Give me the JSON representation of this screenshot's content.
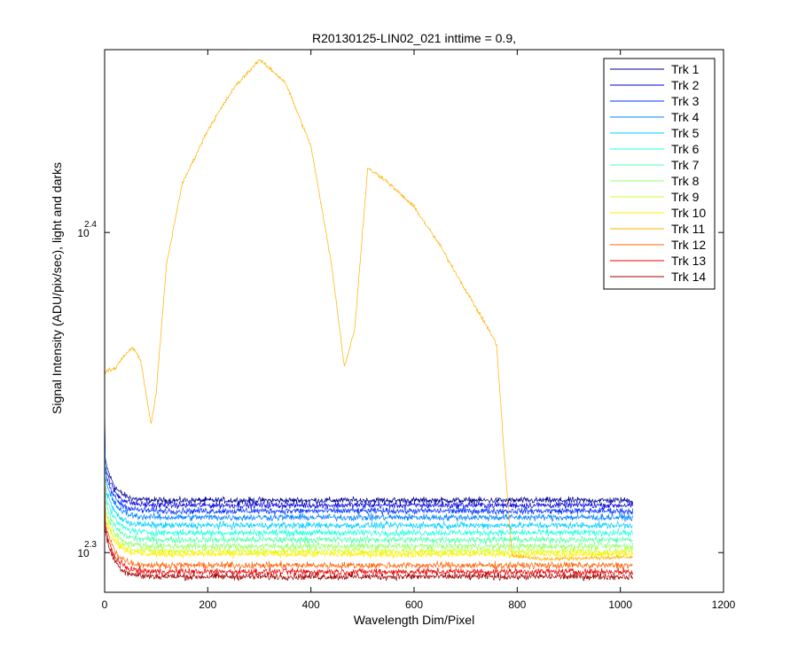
{
  "chart_data": {
    "type": "line",
    "title": "R20130125-LIN02_021 inttime = 0.9,",
    "xlabel": "Wavelength Dim/Pixel",
    "ylabel": "Signal Intensity (ADU/pix/sec), light and darks",
    "xlim": [
      0,
      1200
    ],
    "ylim_log10": [
      2.2876,
      2.4571
    ],
    "y_scale": "log",
    "x_ticks": [
      "0",
      "200",
      "400",
      "600",
      "800",
      "1000",
      "1200"
    ],
    "x_tick_values": [
      0,
      200,
      400,
      600,
      800,
      1000,
      1200
    ],
    "y_ticks": [
      {
        "base": "10",
        "exp": "2.3",
        "log10": 2.3
      },
      {
        "base": "10",
        "exp": "2.4",
        "log10": 2.4
      }
    ],
    "grid": false,
    "legend_position": "top-right",
    "series": [
      {
        "name": "Trk 1",
        "color": "#00008f",
        "pixels": [
          0,
          1024
        ],
        "level_log10": 2.3163,
        "noise": 0.0015,
        "spike_log10": 2.3463
      },
      {
        "name": "Trk 2",
        "color": "#0000df",
        "pixels": [
          0,
          1024
        ],
        "level_log10": 2.3148,
        "noise": 0.0015,
        "spike_log10": 2.344
      },
      {
        "name": "Trk 3",
        "color": "#0030ff",
        "pixels": [
          0,
          1024
        ],
        "level_log10": 2.313,
        "noise": 0.0015,
        "spike_log10": 2.342
      },
      {
        "name": "Trk 4",
        "color": "#0080ff",
        "pixels": [
          0,
          1024
        ],
        "level_log10": 2.311,
        "noise": 0.0016,
        "spike_log10": 2.34
      },
      {
        "name": "Trk 5",
        "color": "#00cfff",
        "pixels": [
          0,
          1024
        ],
        "level_log10": 2.3085,
        "noise": 0.0016,
        "spike_log10": 2.338
      },
      {
        "name": "Trk 6",
        "color": "#20ffdf",
        "pixels": [
          0,
          1024
        ],
        "level_log10": 2.3062,
        "noise": 0.0016,
        "spike_log10": 2.3355
      },
      {
        "name": "Trk 7",
        "color": "#50ffaf",
        "pixels": [
          0,
          1024
        ],
        "level_log10": 2.304,
        "noise": 0.0016,
        "spike_log10": 2.333
      },
      {
        "name": "Trk 8",
        "color": "#90ff70",
        "pixels": [
          0,
          1024
        ],
        "level_log10": 2.302,
        "noise": 0.0016,
        "spike_log10": 2.331
      },
      {
        "name": "Trk 9",
        "color": "#cfff30",
        "pixels": [
          0,
          1024
        ],
        "level_log10": 2.3005,
        "noise": 0.0016,
        "spike_log10": 2.3295
      },
      {
        "name": "Trk 10",
        "color": "#ffef00",
        "pixels": [
          0,
          1024
        ],
        "level_log10": 2.2995,
        "noise": 0.0016,
        "spike_log10": 2.329
      },
      {
        "name": "Trk 11",
        "color": "#ffb000",
        "pixels": [
          0,
          1024
        ],
        "noise": 0.0009,
        "profile": [
          [
            0,
            2.3565
          ],
          [
            20,
            2.3575
          ],
          [
            40,
            2.362
          ],
          [
            55,
            2.364
          ],
          [
            70,
            2.36
          ],
          [
            90,
            2.34
          ],
          [
            100,
            2.35
          ],
          [
            120,
            2.39
          ],
          [
            150,
            2.415
          ],
          [
            200,
            2.432
          ],
          [
            250,
            2.445
          ],
          [
            300,
            2.454
          ],
          [
            350,
            2.447
          ],
          [
            400,
            2.427
          ],
          [
            440,
            2.39
          ],
          [
            465,
            2.358
          ],
          [
            485,
            2.37
          ],
          [
            510,
            2.42
          ],
          [
            540,
            2.417
          ],
          [
            600,
            2.408
          ],
          [
            650,
            2.396
          ],
          [
            700,
            2.382
          ],
          [
            740,
            2.371
          ],
          [
            760,
            2.365
          ],
          [
            775,
            2.33
          ],
          [
            790,
            2.299
          ],
          [
            850,
            2.298
          ],
          [
            1000,
            2.2985
          ],
          [
            1024,
            2.2985
          ]
        ]
      },
      {
        "name": "Trk 12",
        "color": "#ff6000",
        "pixels": [
          0,
          1024
        ],
        "level_log10": 2.296,
        "noise": 0.0016,
        "spike_log10": 2.328
      },
      {
        "name": "Trk 13",
        "color": "#ef0000",
        "pixels": [
          0,
          1024
        ],
        "level_log10": 2.294,
        "noise": 0.0016,
        "spike_log10": 2.327
      },
      {
        "name": "Trk 14",
        "color": "#9f0000",
        "pixels": [
          0,
          1024
        ],
        "level_log10": 2.2925,
        "noise": 0.0016,
        "spike_log10": 2.326
      }
    ]
  }
}
